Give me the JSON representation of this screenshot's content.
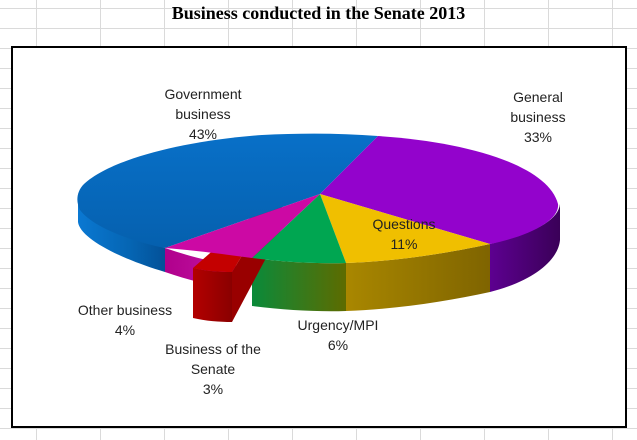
{
  "title": "Business conducted in the Senate 2013",
  "chart_data": {
    "type": "pie",
    "title": "Business conducted in the Senate 2013",
    "three_d": true,
    "legend": "none",
    "slices": [
      {
        "name": "Government business",
        "value": 43,
        "label_lines": [
          "Government",
          "business",
          "43%"
        ],
        "color": "#0466b8"
      },
      {
        "name": "General business",
        "value": 33,
        "label_lines": [
          "General",
          "business",
          "33%"
        ],
        "color": "#9302cc"
      },
      {
        "name": "Questions",
        "value": 11,
        "label_lines": [
          "Questions",
          "11%"
        ],
        "color": "#f0c000"
      },
      {
        "name": "Urgency/MPI",
        "value": 6,
        "label_lines": [
          "Urgency/MPI",
          "6%"
        ],
        "color": "#00a650"
      },
      {
        "name": "Business of the Senate",
        "value": 3,
        "label_lines": [
          "Business of the",
          "Senate",
          "3%"
        ],
        "color": "#cc0000",
        "exploded": true
      },
      {
        "name": "Other business",
        "value": 4,
        "label_lines": [
          "Other business",
          "4%"
        ],
        "color": "#cc0aa0"
      }
    ]
  }
}
